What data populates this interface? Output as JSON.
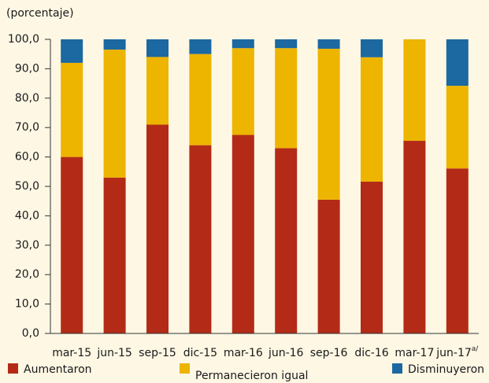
{
  "chart_data": {
    "type": "stacked_bar",
    "y_label": "(porcentaje)",
    "categories": [
      "mar-15",
      "jun-15",
      "sep-15",
      "dic-15",
      "mar-16",
      "jun-16",
      "sep-16",
      "dic-16",
      "mar-17",
      "jun-17"
    ],
    "superscripts": [
      null,
      null,
      null,
      null,
      null,
      null,
      null,
      null,
      null,
      "a/"
    ],
    "series": [
      {
        "name": "Aumentaron",
        "color": "#b32b16",
        "values": [
          60,
          53,
          71,
          64,
          67.5,
          63,
          45.5,
          51.6,
          65.5,
          56.1
        ]
      },
      {
        "name": "Permanecieron igual",
        "color": "#edb400",
        "values": [
          32,
          43.5,
          23,
          31,
          29.5,
          34,
          51.3,
          42.3,
          34.5,
          28.1
        ]
      },
      {
        "name": "Disminuyeron",
        "color": "#1c68a0",
        "values": [
          8,
          3.5,
          6,
          5,
          3,
          3,
          3.2,
          6.1,
          0,
          15.8
        ]
      }
    ],
    "ylim": [
      0,
      100
    ],
    "yticks": [
      {
        "value": 0,
        "label": "0,0"
      },
      {
        "value": 10,
        "label": "10,0"
      },
      {
        "value": 20,
        "label": "20,0"
      },
      {
        "value": 30,
        "label": "30,0"
      },
      {
        "value": 40,
        "label": "40,0"
      },
      {
        "value": 50,
        "label": "50,0"
      },
      {
        "value": 60,
        "label": "60,0"
      },
      {
        "value": 70,
        "label": "70,0"
      },
      {
        "value": 80,
        "label": "80,0"
      },
      {
        "value": 90,
        "label": "90,0"
      },
      {
        "value": 100,
        "label": "100,0"
      }
    ]
  }
}
